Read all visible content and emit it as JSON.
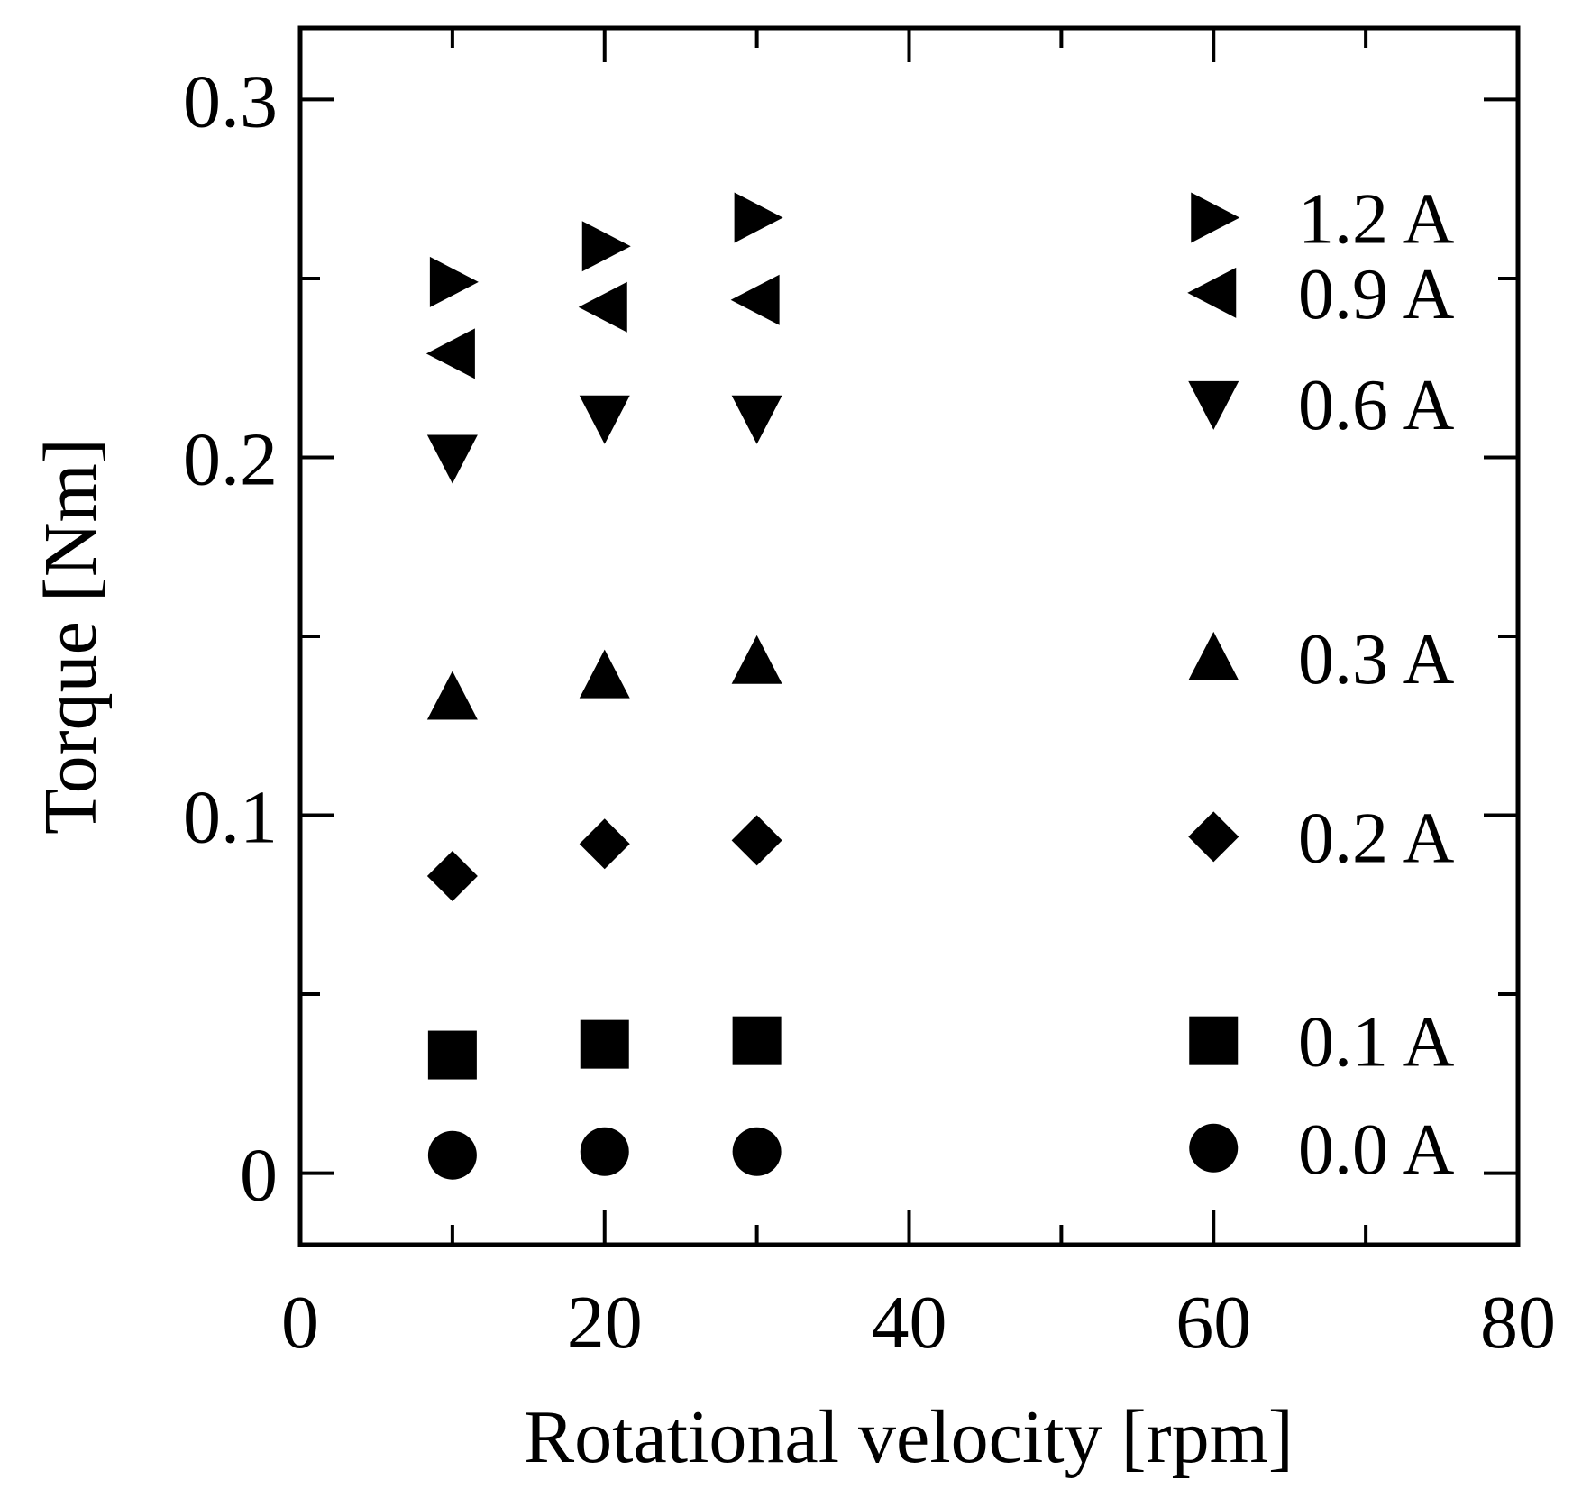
{
  "chart_data": {
    "type": "scatter",
    "title": "",
    "xlabel": "Rotational velocity [rpm]",
    "ylabel": "Torque [Nm]",
    "xlim": [
      0,
      80
    ],
    "ylim": [
      -0.02,
      0.32
    ],
    "x_ticks": [
      0,
      20,
      40,
      60,
      80
    ],
    "x_tick_labels": [
      "0",
      "20",
      "40",
      "60",
      "80"
    ],
    "y_ticks": [
      0,
      0.1,
      0.2,
      0.3
    ],
    "y_tick_labels": [
      "0",
      "0.1",
      "0.2",
      "0.3"
    ],
    "x_minor_step": 10,
    "y_minor_step": 0.05,
    "grid": false,
    "legend_position": "right inside plot area",
    "series": [
      {
        "name": "1.2 A",
        "marker": "triangle-right",
        "x": [
          10,
          20,
          30
        ],
        "y": [
          0.249,
          0.259,
          0.267
        ],
        "legend_y": 0.267
      },
      {
        "name": "0.9 A",
        "marker": "triangle-left",
        "x": [
          10,
          20,
          30
        ],
        "y": [
          0.229,
          0.242,
          0.244
        ],
        "legend_y": 0.246
      },
      {
        "name": "0.6 A",
        "marker": "triangle-down",
        "x": [
          10,
          20,
          30
        ],
        "y": [
          0.2,
          0.211,
          0.211
        ],
        "legend_y": 0.215
      },
      {
        "name": "0.3 A",
        "marker": "triangle-up",
        "x": [
          10,
          20,
          30
        ],
        "y": [
          0.133,
          0.139,
          0.143
        ],
        "legend_y": 0.144
      },
      {
        "name": "0.2 A",
        "marker": "diamond",
        "x": [
          10,
          20,
          30
        ],
        "y": [
          0.083,
          0.092,
          0.093
        ],
        "legend_y": 0.094
      },
      {
        "name": "0.1 A",
        "marker": "square",
        "x": [
          10,
          20,
          30
        ],
        "y": [
          0.033,
          0.036,
          0.037
        ],
        "legend_y": 0.037
      },
      {
        "name": "0.0 A",
        "marker": "circle",
        "x": [
          10,
          20,
          30
        ],
        "y": [
          0.005,
          0.006,
          0.006
        ],
        "legend_y": 0.007
      }
    ]
  }
}
